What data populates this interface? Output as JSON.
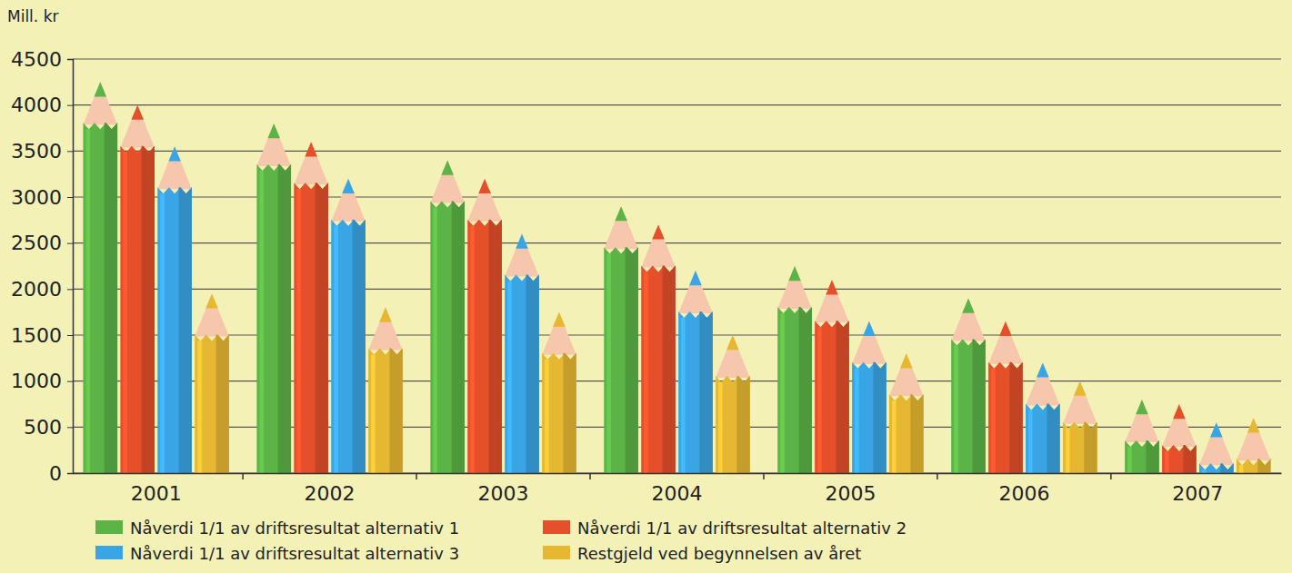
{
  "chart_data": {
    "type": "bar",
    "y_label": "Mill. kr",
    "categories": [
      "2001",
      "2002",
      "2003",
      "2004",
      "2005",
      "2006",
      "2007"
    ],
    "series": [
      {
        "name": "Nåverdi 1/1 av driftsresultat alternativ 1",
        "color": "#5cb446",
        "values": [
          4250,
          3800,
          3400,
          2900,
          2250,
          1900,
          800
        ]
      },
      {
        "name": "Nåverdi 1/1 av driftsresultat alternativ 2",
        "color": "#e5502b",
        "values": [
          4000,
          3600,
          3200,
          2700,
          2100,
          1650,
          750
        ]
      },
      {
        "name": "Nåverdi 1/1 av driftsresultat alternativ 3",
        "color": "#3aa5e4",
        "values": [
          3550,
          3200,
          2600,
          2200,
          1650,
          1200,
          550
        ]
      },
      {
        "name": "Restgjeld ved begynnelsen av året",
        "color": "#e6b832",
        "values": [
          1950,
          1800,
          1750,
          1500,
          1300,
          1000,
          600
        ]
      }
    ],
    "ylim": [
      0,
      4500
    ],
    "yticks": [
      0,
      500,
      1000,
      1500,
      2000,
      2500,
      3000,
      3500,
      4000,
      4500
    ],
    "grid": true,
    "legend": "bottom"
  }
}
